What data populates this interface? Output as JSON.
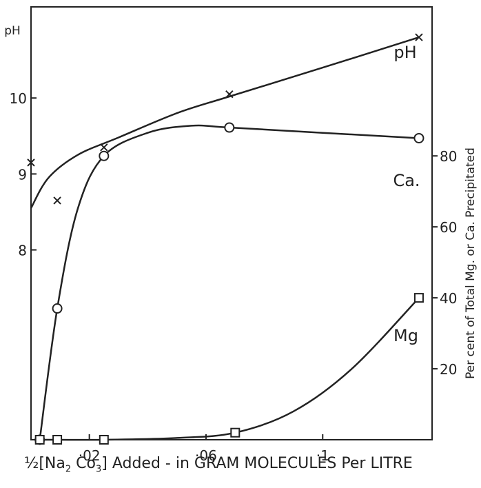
{
  "chart_data": {
    "type": "line",
    "x_tick_labels": [
      "·02",
      "·06",
      "·1"
    ],
    "x_ticks": [
      0.02,
      0.06,
      0.1
    ],
    "xlim": [
      0.0,
      0.1375
    ],
    "xlabel": {
      "prefix": "½[Na",
      "sub1": "2",
      "middle": " Co",
      "sub2": "3",
      "suffix": "] Added - in GRAM MOLECULES Per LITRE"
    },
    "left_axis": {
      "title": "pH",
      "tick_labels": [
        "8",
        "9",
        "10"
      ],
      "ticks": [
        8,
        9,
        10
      ],
      "ylim": [
        5.5,
        11.2
      ]
    },
    "right_axis": {
      "title": "Per cent of Total Mg. or Ca. Precipitated",
      "tick_labels": [
        "20",
        "40",
        "60",
        "80"
      ],
      "ticks": [
        20,
        40,
        60,
        80
      ],
      "ylim": [
        0,
        122
      ]
    },
    "grid": false,
    "series": [
      {
        "name": "pH",
        "axis": "left",
        "marker": "x",
        "points": [
          [
            0.0,
            9.15
          ],
          [
            0.009,
            8.65
          ],
          [
            0.025,
            9.35
          ],
          [
            0.068,
            10.05
          ],
          [
            0.133,
            10.8
          ]
        ],
        "curve": [
          [
            0.0,
            8.55
          ],
          [
            0.006,
            8.95
          ],
          [
            0.016,
            9.25
          ],
          [
            0.03,
            9.48
          ],
          [
            0.05,
            9.8
          ],
          [
            0.068,
            10.02
          ],
          [
            0.1,
            10.4
          ],
          [
            0.133,
            10.8
          ]
        ]
      },
      {
        "name": "Ca.",
        "axis": "right",
        "marker": "o",
        "points": [
          [
            0.003,
            0
          ],
          [
            0.009,
            37
          ],
          [
            0.025,
            80
          ],
          [
            0.068,
            88
          ],
          [
            0.133,
            85
          ]
        ],
        "curve": [
          [
            0.003,
            0
          ],
          [
            0.009,
            37
          ],
          [
            0.016,
            65
          ],
          [
            0.025,
            80
          ],
          [
            0.04,
            86.5
          ],
          [
            0.055,
            88.5
          ],
          [
            0.068,
            88
          ],
          [
            0.1,
            86.5
          ],
          [
            0.133,
            85
          ]
        ]
      },
      {
        "name": "Mg",
        "axis": "right",
        "marker": "square",
        "points": [
          [
            0.003,
            0
          ],
          [
            0.009,
            0
          ],
          [
            0.025,
            0
          ],
          [
            0.07,
            2
          ],
          [
            0.133,
            40
          ]
        ],
        "curve": [
          [
            0.003,
            0
          ],
          [
            0.009,
            0
          ],
          [
            0.025,
            0
          ],
          [
            0.05,
            0.5
          ],
          [
            0.07,
            2
          ],
          [
            0.09,
            8
          ],
          [
            0.11,
            20
          ],
          [
            0.133,
            40
          ]
        ]
      }
    ]
  }
}
